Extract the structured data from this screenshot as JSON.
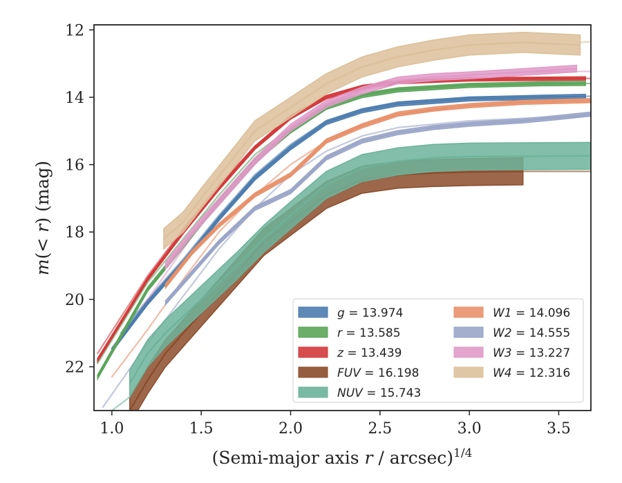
{
  "chart_data": {
    "type": "line",
    "xlabel": "(Semi-major axis r / arcsec)",
    "xlabel_italic": "r",
    "xlabel_sup": "1/4",
    "ylabel": "m(< r) (mag)",
    "xlim": [
      0.9,
      3.68
    ],
    "ylim": [
      23.3,
      11.85
    ],
    "y_inverted": true,
    "xticks": [
      1.0,
      1.5,
      2.0,
      2.5,
      3.0,
      3.5
    ],
    "xtick_labels": [
      "1.0",
      "1.5",
      "2.0",
      "2.5",
      "3.0",
      "3.5"
    ],
    "yticks": [
      12,
      14,
      16,
      18,
      20,
      22
    ],
    "ytick_labels": [
      "12",
      "14",
      "16",
      "18",
      "20",
      "22"
    ],
    "grid": false,
    "legend_position": "lower-right",
    "legend_columns": 2,
    "series": [
      {
        "name": "g",
        "label": "g = 13.974",
        "color": "#4c7cae",
        "x": [
          1.0,
          1.2,
          1.4,
          1.6,
          1.8,
          2.0,
          2.2,
          2.4,
          2.6,
          3.0,
          3.4,
          3.65
        ],
        "y": [
          21.5,
          20.1,
          18.9,
          17.6,
          16.4,
          15.5,
          14.75,
          14.4,
          14.2,
          14.05,
          14.0,
          13.97
        ],
        "band": 0.06,
        "model": {
          "x": [
            1.05,
            1.2,
            1.4,
            1.6,
            1.8,
            2.0,
            2.2,
            2.4,
            2.6,
            3.0,
            3.4,
            3.68
          ],
          "y": [
            21.0,
            20.0,
            18.8,
            17.5,
            16.3,
            15.4,
            14.7,
            14.35,
            14.15,
            14.0,
            13.98,
            13.97
          ]
        }
      },
      {
        "name": "r",
        "label": "r = 13.585",
        "color": "#5aa55a",
        "x": [
          0.92,
          1.2,
          1.4,
          1.6,
          1.8,
          2.0,
          2.2,
          2.4,
          2.6,
          3.0,
          3.4,
          3.65
        ],
        "y": [
          22.3,
          19.7,
          18.4,
          17.1,
          15.9,
          15.0,
          14.3,
          13.95,
          13.78,
          13.65,
          13.6,
          13.59
        ],
        "band": 0.06,
        "model": {
          "x": [
            0.92,
            1.2,
            1.4,
            1.6,
            1.8,
            2.0,
            2.2,
            2.4,
            2.6,
            3.0,
            3.4,
            3.68
          ],
          "y": [
            21.9,
            19.5,
            18.2,
            16.9,
            15.7,
            14.9,
            14.2,
            13.9,
            13.75,
            13.63,
            13.6,
            13.59
          ]
        }
      },
      {
        "name": "z",
        "label": "z = 13.439",
        "color": "#d33a3c",
        "x": [
          0.92,
          1.2,
          1.4,
          1.6,
          1.8,
          2.0,
          2.2,
          2.4,
          2.6,
          3.0,
          3.4,
          3.65
        ],
        "y": [
          21.8,
          19.4,
          18.0,
          16.7,
          15.5,
          14.6,
          14.0,
          13.7,
          13.55,
          13.47,
          13.45,
          13.44
        ],
        "band": 0.05,
        "model": {
          "x": [
            0.92,
            1.2,
            1.4,
            1.6,
            1.8,
            2.0,
            2.2,
            2.4,
            2.6,
            3.0,
            3.4,
            3.68
          ],
          "y": [
            21.6,
            19.3,
            17.9,
            16.6,
            15.45,
            14.55,
            13.95,
            13.65,
            13.52,
            13.46,
            13.44,
            13.44
          ]
        }
      },
      {
        "name": "FUV",
        "label": "FUV = 16.198",
        "color": "#8b4c2c",
        "x": [
          1.1,
          1.2,
          1.3,
          1.5,
          1.7,
          1.85,
          2.0,
          2.2,
          2.4,
          2.6,
          2.8,
          3.0,
          3.3
        ],
        "y": [
          23.3,
          22.4,
          21.6,
          20.4,
          19.2,
          18.3,
          17.7,
          16.9,
          16.45,
          16.3,
          16.25,
          16.22,
          16.2
        ],
        "band": 0.4,
        "model": {
          "x": [
            3.3,
            3.68
          ],
          "y": [
            16.2,
            16.2
          ]
        }
      },
      {
        "name": "NUV",
        "label": "NUV = 15.743",
        "color": "#6cb39a",
        "x": [
          1.1,
          1.2,
          1.3,
          1.5,
          1.7,
          1.85,
          2.0,
          2.2,
          2.4,
          2.6,
          2.8,
          3.0,
          3.68
        ],
        "y": [
          22.5,
          21.6,
          21.0,
          20.0,
          19.0,
          18.2,
          17.5,
          16.6,
          16.1,
          15.9,
          15.8,
          15.76,
          15.74
        ],
        "band": 0.4,
        "model": {
          "x": [
            1.0,
            1.1
          ],
          "y": [
            23.3,
            22.9
          ]
        }
      },
      {
        "name": "W1",
        "label": "W1 = 14.096",
        "color": "#e8906a",
        "x": [
          1.3,
          1.45,
          1.6,
          1.8,
          2.0,
          2.2,
          2.4,
          2.6,
          2.8,
          3.0,
          3.3,
          3.68
        ],
        "y": [
          19.6,
          18.6,
          17.8,
          16.9,
          16.3,
          15.3,
          14.85,
          14.5,
          14.35,
          14.25,
          14.15,
          14.1
        ],
        "band": 0.06,
        "model": {
          "x": [
            1.0,
            1.2,
            1.4,
            1.6,
            1.8,
            2.0,
            2.2,
            2.4,
            2.6,
            3.0,
            3.4,
            3.68
          ],
          "y": [
            22.3,
            20.9,
            19.4,
            18.0,
            16.9,
            16.0,
            15.3,
            14.8,
            14.5,
            14.25,
            14.12,
            14.1
          ]
        }
      },
      {
        "name": "W2",
        "label": "W2 = 14.555",
        "color": "#9aa5c8",
        "x": [
          1.3,
          1.45,
          1.6,
          1.8,
          2.0,
          2.2,
          2.4,
          2.6,
          2.8,
          3.0,
          3.3,
          3.5,
          3.68
        ],
        "y": [
          20.1,
          19.2,
          18.3,
          17.3,
          16.8,
          15.8,
          15.3,
          15.05,
          14.9,
          14.8,
          14.7,
          14.6,
          14.5
        ],
        "band": 0.06,
        "model": {
          "x": [
            0.95,
            1.2,
            1.4,
            1.6,
            1.8,
            2.0,
            2.2,
            2.4,
            2.6,
            3.0,
            3.4,
            3.68
          ],
          "y": [
            23.2,
            21.3,
            19.9,
            18.5,
            17.3,
            16.3,
            15.6,
            15.15,
            14.9,
            14.7,
            14.6,
            14.56
          ]
        }
      },
      {
        "name": "W3",
        "label": "W3 = 13.227",
        "color": "#e09ac8",
        "x": [
          1.3,
          1.45,
          1.6,
          1.8,
          2.0,
          2.2,
          2.4,
          2.6,
          2.8,
          3.0,
          3.3,
          3.6
        ],
        "y": [
          19.0,
          18.0,
          17.1,
          15.9,
          14.9,
          14.2,
          13.8,
          13.5,
          13.4,
          13.35,
          13.25,
          13.15
        ],
        "band": 0.1,
        "model": {
          "x": [
            1.0,
            1.2,
            1.4,
            1.6,
            1.8,
            2.0,
            2.2,
            2.4,
            2.6,
            3.0,
            3.4,
            3.68
          ],
          "y": [
            21.6,
            20.0,
            18.5,
            17.0,
            15.8,
            14.9,
            14.2,
            13.75,
            13.5,
            13.32,
            13.25,
            13.23
          ]
        }
      },
      {
        "name": "W4",
        "label": "W4 = 12.316",
        "color": "#dcc09a",
        "x": [
          1.29,
          1.4,
          1.5,
          1.65,
          1.8,
          2.0,
          2.2,
          2.4,
          2.6,
          2.8,
          3.0,
          3.3,
          3.62
        ],
        "y": [
          18.2,
          17.7,
          17.0,
          16.0,
          15.0,
          14.3,
          13.6,
          13.1,
          12.8,
          12.6,
          12.45,
          12.37,
          12.45
        ],
        "band": 0.3,
        "model": {
          "x": [
            3.62,
            3.68
          ],
          "y": [
            12.37,
            12.35
          ]
        }
      }
    ]
  }
}
